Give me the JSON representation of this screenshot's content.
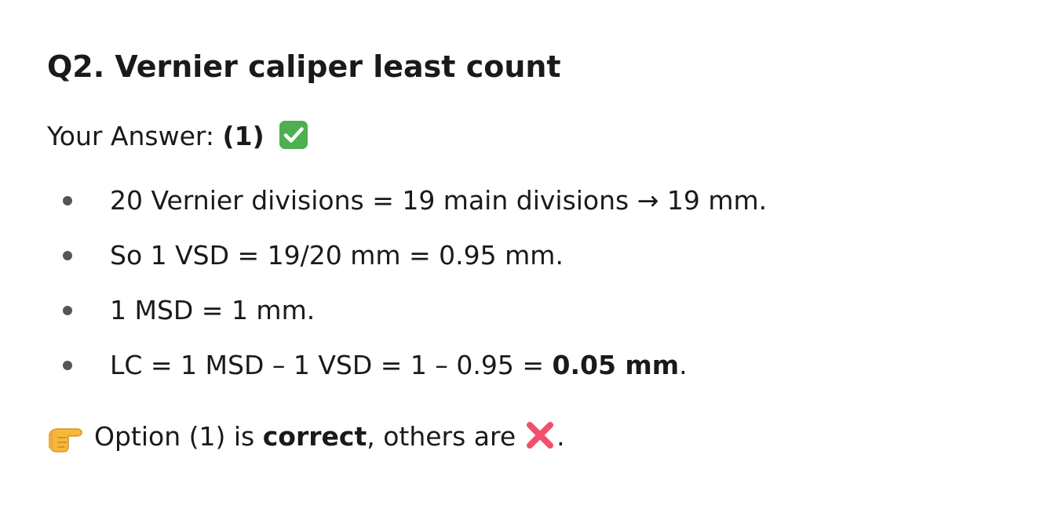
{
  "question": {
    "title": "Q2. Vernier caliper least count"
  },
  "answer": {
    "label": "Your Answer:",
    "value": "(1)",
    "status_icon": "check-mark-button-icon"
  },
  "bullets": [
    {
      "text": "20 Vernier divisions = 19 main divisions → 19 mm."
    },
    {
      "text": "So 1 VSD = 19/20 mm = 0.95 mm."
    },
    {
      "text": "1 MSD = 1 mm."
    },
    {
      "prefix": "LC = 1 MSD – 1 VSD = 1 – 0.95 = ",
      "bold": "0.05 mm",
      "suffix": "."
    }
  ],
  "conclusion": {
    "icon": "pointing-hand-icon",
    "text_before": "Option (1) is ",
    "bold": "correct",
    "text_after": ", others are",
    "end_icon": "cross-mark-icon",
    "end": "."
  },
  "colors": {
    "check_bg": "#4caf50",
    "cross": "#f0506e",
    "bullet_dot": "#555555",
    "text": "#1a1a1a"
  }
}
